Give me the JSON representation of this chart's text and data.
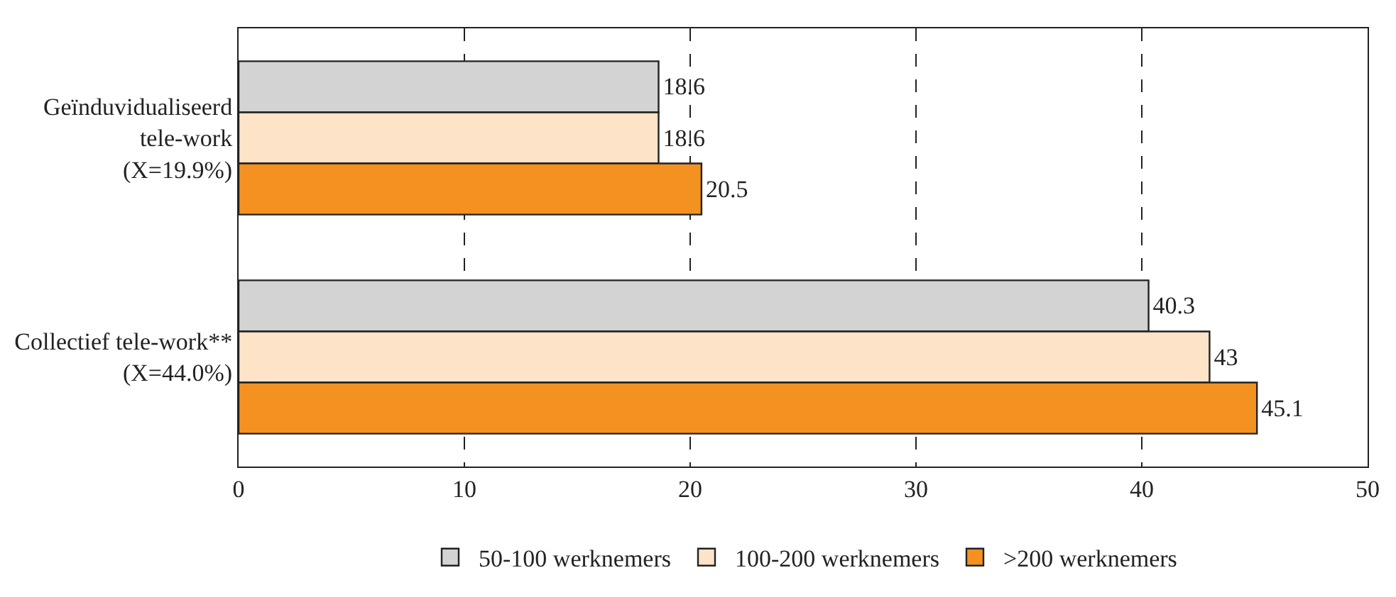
{
  "chart_data": {
    "type": "bar",
    "orientation": "horizontal",
    "categories": [
      "Geïnduvidualiseerd\ntele-work\n(X=19.9%)",
      "Collectief tele-work**\n(X=44.0%)"
    ],
    "series": [
      {
        "name": "50-100 werknemers",
        "color": "#d3d3d3",
        "values": [
          18.6,
          40.3
        ]
      },
      {
        "name": "100-200 werknemers",
        "color": "#fde3c8",
        "values": [
          18.6,
          43
        ]
      },
      {
        "name": ">200 werknemers",
        "color": "#f39220",
        "values": [
          20.5,
          45.1
        ]
      }
    ],
    "xlim": [
      0,
      50
    ],
    "xticks": [
      0,
      10,
      20,
      30,
      40,
      50
    ],
    "grid": "x",
    "legend": "bottom",
    "data_labels": true
  }
}
